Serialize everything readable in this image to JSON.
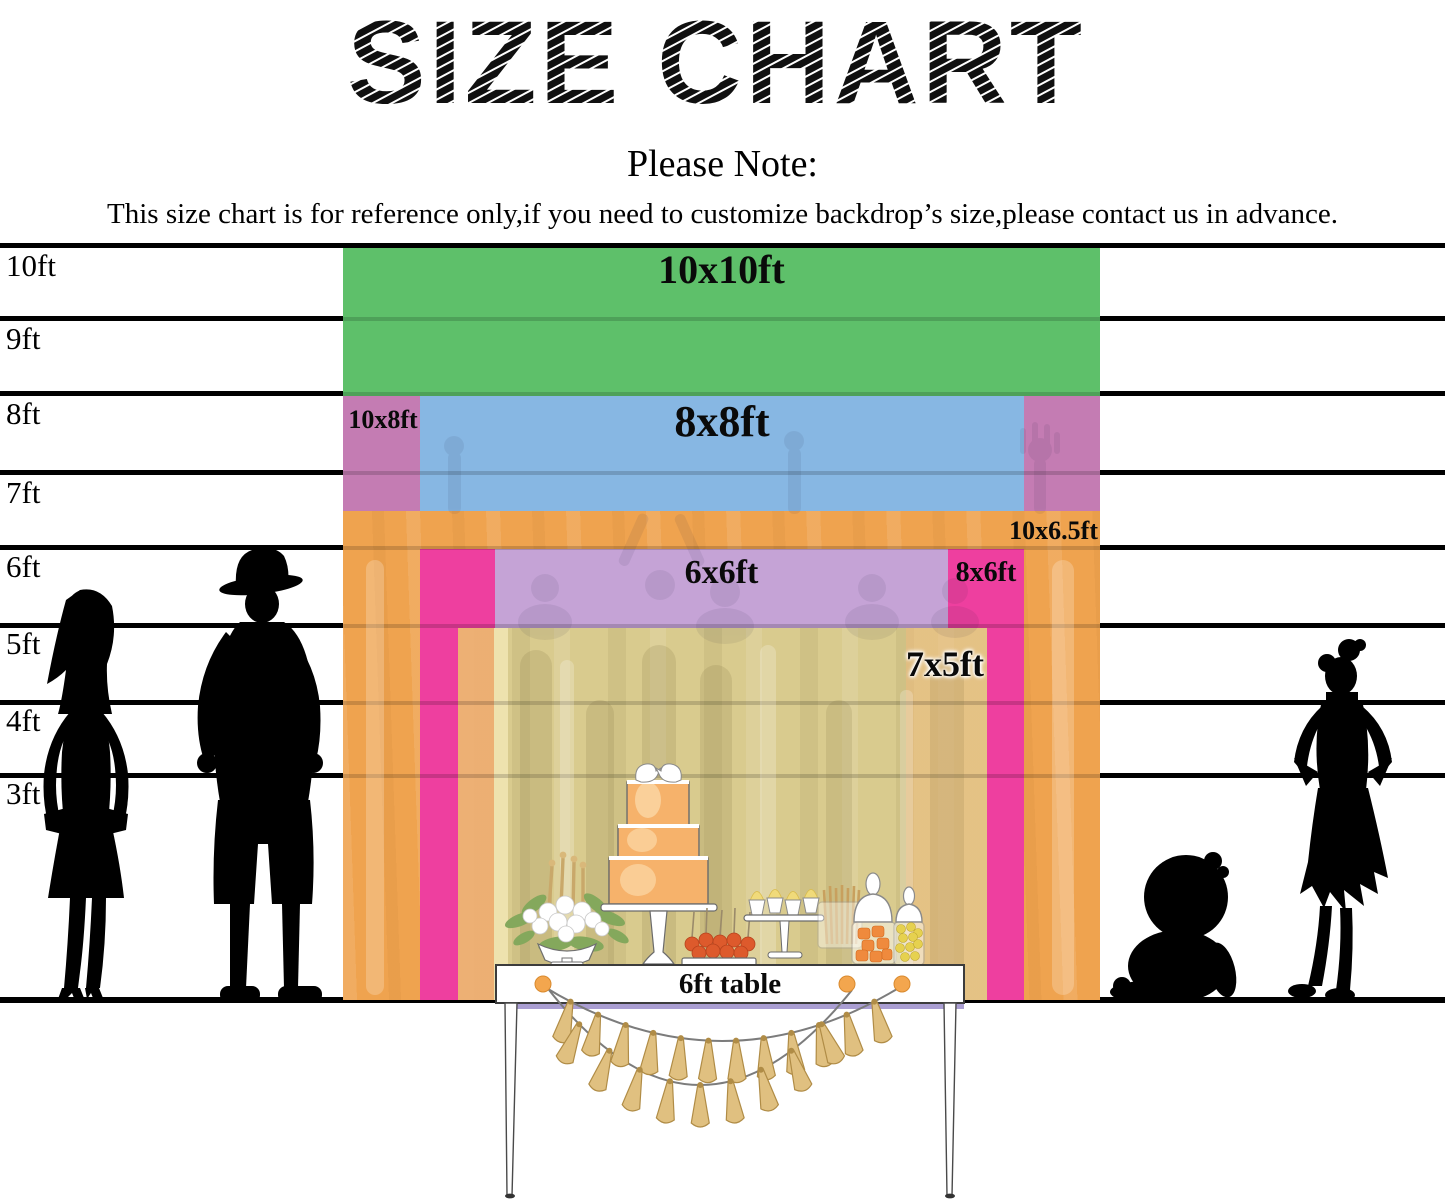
{
  "title": "SIZE CHART",
  "note": {
    "heading": "Please Note:",
    "body": "This size chart is for reference only,if you need to customize backdrop’s size,please contact us in advance."
  },
  "ruler": {
    "labels": [
      "10ft",
      "9ft",
      "8ft",
      "7ft",
      "6ft",
      "5ft",
      "4ft",
      "3ft"
    ]
  },
  "sizes": [
    {
      "label": "10x10ft",
      "width_ft": 10,
      "height_ft": 10,
      "color": "#5ec06a"
    },
    {
      "label": "10x8ft",
      "width_ft": 10,
      "height_ft": 8,
      "color": "#c47cb3"
    },
    {
      "label": "8x8ft",
      "width_ft": 8,
      "height_ft": 8,
      "color": "#87b7e3"
    },
    {
      "label": "10x6.5ft",
      "width_ft": 10,
      "height_ft": 6.5,
      "color": "#efa34f"
    },
    {
      "label": "8x6ft",
      "width_ft": 8,
      "height_ft": 6,
      "color": "#ee3f9f"
    },
    {
      "label": "6x6ft",
      "width_ft": 6,
      "height_ft": 6,
      "color": "#c5a3d6"
    },
    {
      "label": "7x5ft",
      "width_ft": 7,
      "height_ft": 5,
      "color": "#d9cb8e"
    }
  ],
  "table": {
    "label": "6ft table"
  },
  "figures": {
    "left_silhouettes": [
      "woman",
      "man"
    ],
    "right_silhouettes": [
      "sitting baby",
      "posing girl"
    ]
  },
  "decor": {
    "tassel_gold": "#e0c080",
    "tassel_edge": "#b08c46",
    "string_grey": "#7c7c7c",
    "dot_orange": "#f3a64e",
    "cake_orange": "#f6b26b",
    "line_black": "#000000"
  },
  "chart_data": {
    "type": "table",
    "title": "SIZE CHART",
    "columns": [
      "size",
      "width_ft",
      "height_ft"
    ],
    "rows": [
      [
        "10x10ft",
        10,
        10
      ],
      [
        "10x8ft",
        10,
        8
      ],
      [
        "8x8ft",
        8,
        8
      ],
      [
        "10x6.5ft",
        10,
        6.5
      ],
      [
        "8x6ft",
        8,
        6
      ],
      [
        "6x6ft",
        6,
        6
      ],
      [
        "7x5ft",
        7,
        5
      ]
    ]
  }
}
